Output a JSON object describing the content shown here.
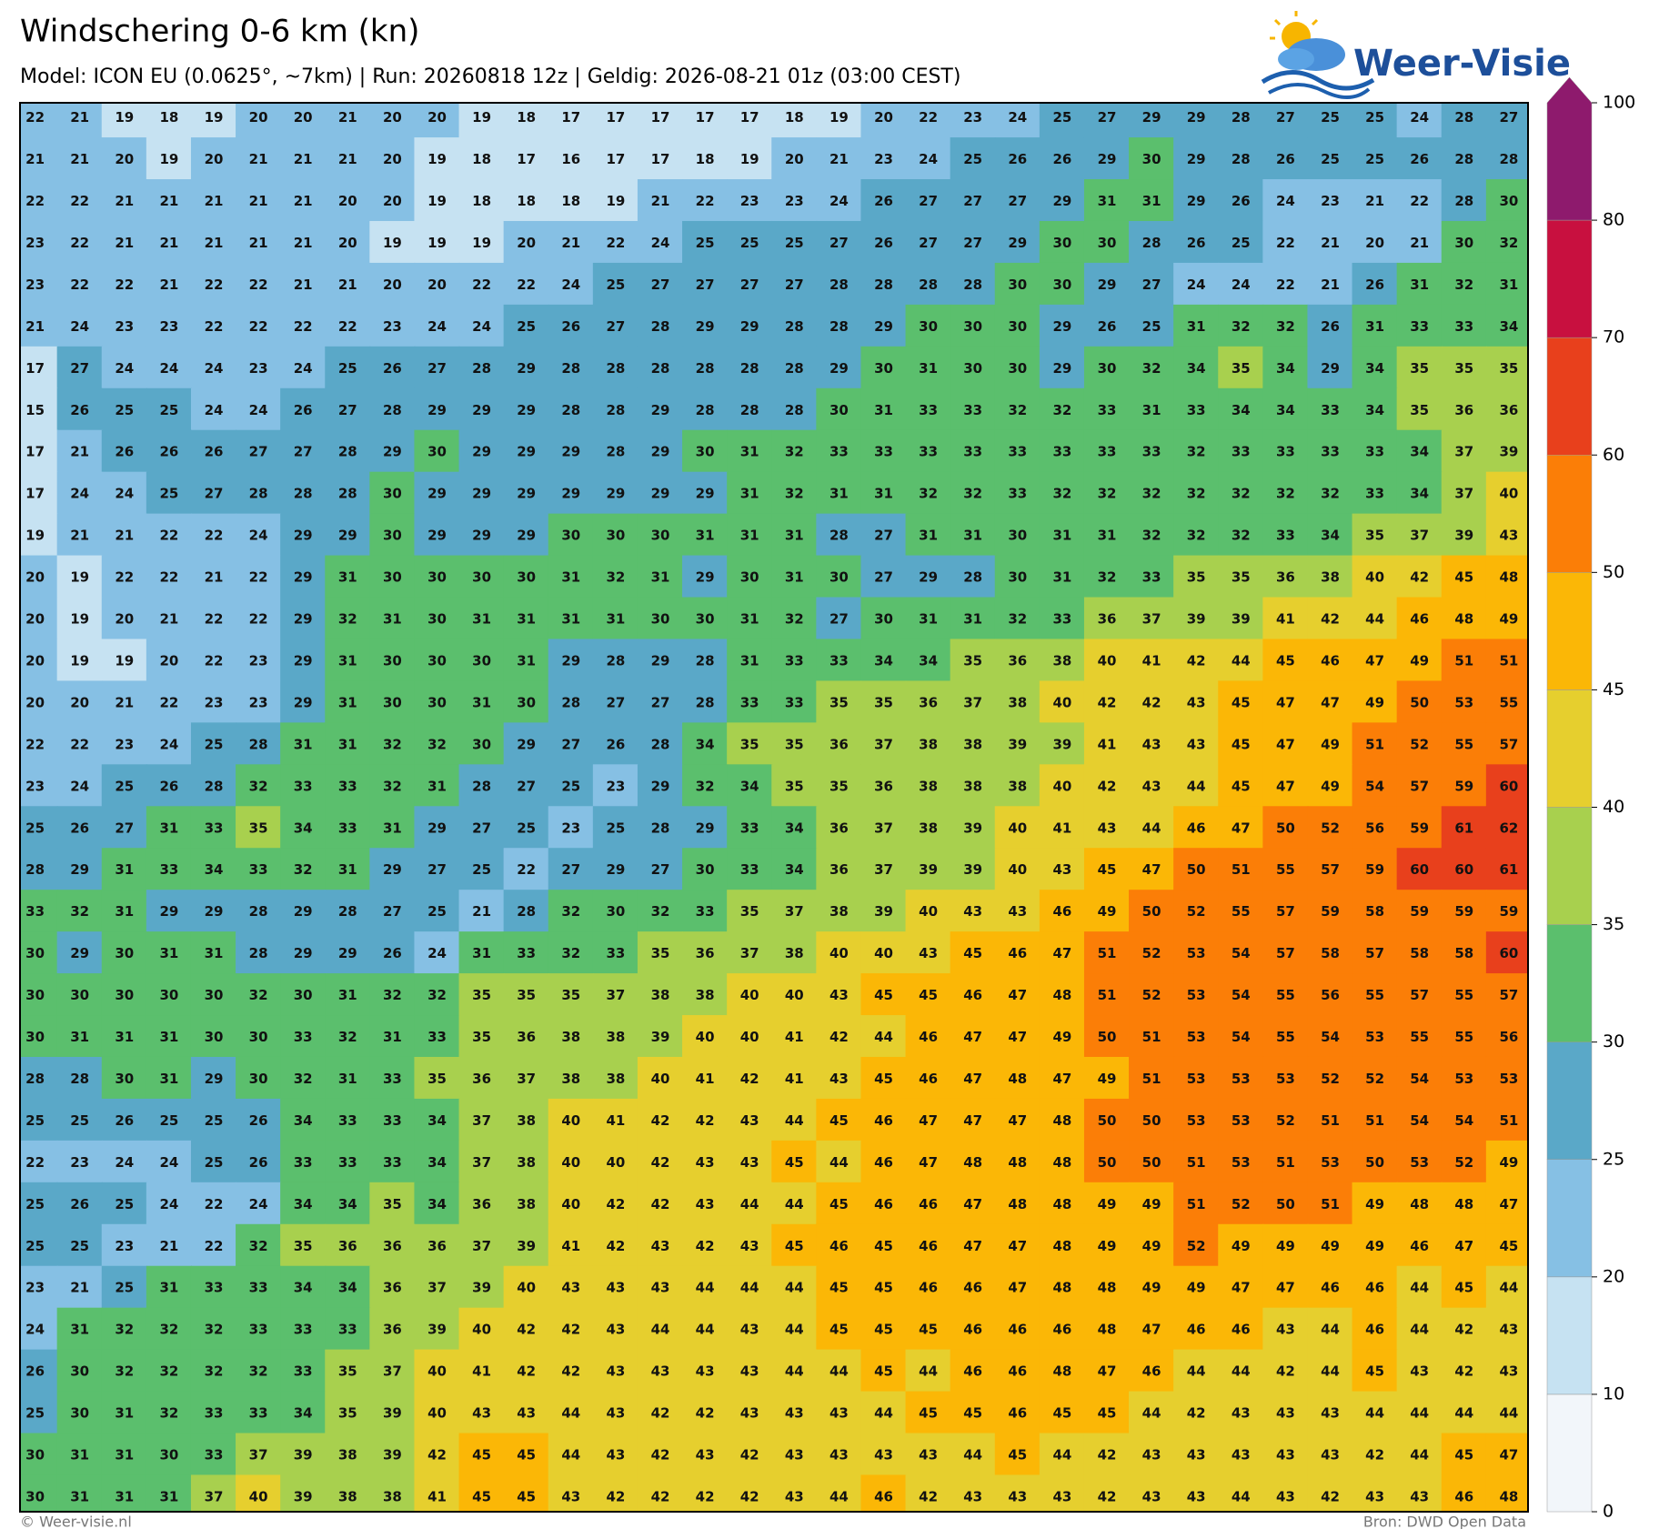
{
  "header": {
    "title": "Windschering 0-6 km (kn)",
    "subtitle": "Model: ICON EU (0.0625°, ~7km)  |  Run: 20260818 12z  |  Geldig: 2026-08-21 01z (03:00 CEST)"
  },
  "logo": {
    "text": "Weer-Visie"
  },
  "map_grid": {
    "values": [
      [
        22,
        21,
        19,
        18,
        19,
        20,
        20,
        21,
        20,
        20,
        19,
        18,
        17,
        17,
        17,
        17,
        17,
        18,
        19,
        20,
        22,
        23,
        24,
        25,
        27,
        29,
        29,
        28,
        27,
        25,
        25,
        24,
        28,
        27
      ],
      [
        21,
        21,
        20,
        19,
        20,
        21,
        21,
        21,
        20,
        19,
        18,
        17,
        16,
        17,
        17,
        18,
        19,
        20,
        21,
        23,
        24,
        25,
        26,
        26,
        29,
        30,
        29,
        28,
        26,
        25,
        25,
        26,
        28,
        28
      ],
      [
        22,
        22,
        21,
        21,
        21,
        21,
        21,
        20,
        20,
        19,
        18,
        18,
        18,
        19,
        21,
        22,
        23,
        23,
        24,
        26,
        27,
        27,
        27,
        29,
        31,
        31,
        29,
        26,
        24,
        23,
        21,
        22,
        28,
        30
      ],
      [
        23,
        22,
        21,
        21,
        21,
        21,
        21,
        20,
        19,
        19,
        19,
        20,
        21,
        22,
        24,
        25,
        25,
        25,
        27,
        26,
        27,
        27,
        29,
        30,
        30,
        28,
        26,
        25,
        22,
        21,
        20,
        21,
        30,
        32
      ],
      [
        23,
        22,
        22,
        21,
        22,
        22,
        21,
        21,
        20,
        20,
        22,
        22,
        24,
        25,
        27,
        27,
        27,
        27,
        28,
        28,
        28,
        28,
        30,
        30,
        29,
        27,
        24,
        24,
        22,
        21,
        26,
        31,
        32,
        31
      ],
      [
        21,
        24,
        23,
        23,
        22,
        22,
        22,
        22,
        23,
        24,
        24,
        25,
        26,
        27,
        28,
        29,
        29,
        28,
        28,
        29,
        30,
        30,
        30,
        29,
        26,
        25,
        31,
        32,
        32,
        26,
        31,
        33,
        33,
        34
      ],
      [
        17,
        27,
        24,
        24,
        24,
        23,
        24,
        25,
        26,
        27,
        28,
        29,
        28,
        28,
        28,
        28,
        28,
        28,
        29,
        30,
        31,
        30,
        30,
        29,
        30,
        32,
        34,
        35,
        34,
        29,
        34,
        35,
        35,
        35
      ],
      [
        15,
        26,
        25,
        25,
        24,
        24,
        26,
        27,
        28,
        29,
        29,
        29,
        28,
        28,
        29,
        28,
        28,
        28,
        30,
        31,
        33,
        33,
        32,
        32,
        33,
        31,
        33,
        34,
        34,
        33,
        34,
        35,
        36,
        36
      ],
      [
        17,
        21,
        26,
        26,
        26,
        27,
        27,
        28,
        29,
        30,
        29,
        29,
        29,
        28,
        29,
        30,
        31,
        32,
        33,
        33,
        33,
        33,
        33,
        33,
        33,
        33,
        32,
        33,
        33,
        33,
        33,
        34,
        37,
        39
      ],
      [
        17,
        24,
        24,
        25,
        27,
        28,
        28,
        28,
        30,
        29,
        29,
        29,
        29,
        29,
        29,
        29,
        31,
        32,
        31,
        31,
        32,
        32,
        33,
        32,
        32,
        32,
        32,
        32,
        32,
        32,
        33,
        34,
        37,
        40
      ],
      [
        19,
        21,
        21,
        22,
        22,
        24,
        29,
        29,
        30,
        29,
        29,
        29,
        30,
        30,
        30,
        31,
        31,
        31,
        28,
        27,
        31,
        31,
        30,
        31,
        31,
        32,
        32,
        32,
        33,
        34,
        35,
        37,
        39,
        43
      ],
      [
        20,
        19,
        22,
        22,
        21,
        22,
        29,
        31,
        30,
        30,
        30,
        30,
        31,
        32,
        31,
        29,
        30,
        31,
        30,
        27,
        29,
        28,
        30,
        31,
        32,
        33,
        35,
        35,
        36,
        38,
        40,
        42,
        45,
        48
      ],
      [
        20,
        19,
        20,
        21,
        22,
        22,
        29,
        32,
        31,
        30,
        31,
        31,
        31,
        31,
        30,
        30,
        31,
        32,
        27,
        30,
        31,
        31,
        32,
        33,
        36,
        37,
        39,
        39,
        41,
        42,
        44,
        46,
        48,
        49
      ],
      [
        20,
        19,
        19,
        20,
        22,
        23,
        29,
        31,
        30,
        30,
        30,
        31,
        29,
        28,
        29,
        28,
        31,
        33,
        33,
        34,
        34,
        35,
        36,
        38,
        40,
        41,
        42,
        44,
        45,
        46,
        47,
        49,
        51,
        51
      ],
      [
        20,
        20,
        21,
        22,
        23,
        23,
        29,
        31,
        30,
        30,
        31,
        30,
        28,
        27,
        27,
        28,
        33,
        33,
        35,
        35,
        36,
        37,
        38,
        40,
        42,
        42,
        43,
        45,
        47,
        47,
        49,
        50,
        53,
        55
      ],
      [
        22,
        22,
        23,
        24,
        25,
        28,
        31,
        31,
        32,
        32,
        30,
        29,
        27,
        26,
        28,
        34,
        35,
        35,
        36,
        37,
        38,
        38,
        39,
        39,
        41,
        43,
        43,
        45,
        47,
        49,
        51,
        52,
        55,
        57
      ],
      [
        23,
        24,
        25,
        26,
        28,
        32,
        33,
        33,
        32,
        31,
        28,
        27,
        25,
        23,
        29,
        32,
        34,
        35,
        35,
        36,
        38,
        38,
        38,
        40,
        42,
        43,
        44,
        45,
        47,
        49,
        54,
        57,
        59,
        60
      ],
      [
        25,
        26,
        27,
        31,
        33,
        35,
        34,
        33,
        31,
        29,
        27,
        25,
        23,
        25,
        28,
        29,
        33,
        34,
        36,
        37,
        38,
        39,
        40,
        41,
        43,
        44,
        46,
        47,
        50,
        52,
        56,
        59,
        61,
        62
      ],
      [
        28,
        29,
        31,
        33,
        34,
        33,
        32,
        31,
        29,
        27,
        25,
        22,
        27,
        29,
        27,
        30,
        33,
        34,
        36,
        37,
        39,
        39,
        40,
        43,
        45,
        47,
        50,
        51,
        55,
        57,
        59,
        60,
        60,
        61
      ],
      [
        33,
        32,
        31,
        29,
        29,
        28,
        29,
        28,
        27,
        25,
        21,
        28,
        32,
        30,
        32,
        33,
        35,
        37,
        38,
        39,
        40,
        43,
        43,
        46,
        49,
        50,
        52,
        55,
        57,
        59,
        58,
        59,
        59,
        59
      ],
      [
        30,
        29,
        30,
        31,
        31,
        28,
        29,
        29,
        26,
        24,
        31,
        33,
        32,
        33,
        35,
        36,
        37,
        38,
        40,
        40,
        43,
        45,
        46,
        47,
        51,
        52,
        53,
        54,
        57,
        58,
        57,
        58,
        58,
        60
      ],
      [
        30,
        30,
        30,
        30,
        30,
        32,
        30,
        31,
        32,
        32,
        35,
        35,
        35,
        37,
        38,
        38,
        40,
        40,
        43,
        45,
        45,
        46,
        47,
        48,
        51,
        52,
        53,
        54,
        55,
        56,
        55,
        57,
        55,
        57
      ],
      [
        30,
        31,
        31,
        31,
        30,
        30,
        33,
        32,
        31,
        33,
        35,
        36,
        38,
        38,
        39,
        40,
        40,
        41,
        42,
        44,
        46,
        47,
        47,
        49,
        50,
        51,
        53,
        54,
        55,
        54,
        53,
        55,
        55,
        56
      ],
      [
        28,
        28,
        30,
        31,
        29,
        30,
        32,
        31,
        33,
        35,
        36,
        37,
        38,
        38,
        40,
        41,
        42,
        41,
        43,
        45,
        46,
        47,
        48,
        47,
        49,
        51,
        53,
        53,
        53,
        52,
        52,
        54,
        53,
        53
      ],
      [
        25,
        25,
        26,
        25,
        25,
        26,
        34,
        33,
        33,
        34,
        37,
        38,
        40,
        41,
        42,
        42,
        43,
        44,
        45,
        46,
        47,
        47,
        47,
        48,
        50,
        50,
        53,
        53,
        52,
        51,
        51,
        54,
        54,
        51
      ],
      [
        22,
        23,
        24,
        24,
        25,
        26,
        33,
        33,
        33,
        34,
        37,
        38,
        40,
        40,
        42,
        43,
        43,
        45,
        44,
        46,
        47,
        48,
        48,
        48,
        50,
        50,
        51,
        53,
        51,
        53,
        50,
        53,
        52,
        49
      ],
      [
        25,
        26,
        25,
        24,
        22,
        24,
        34,
        34,
        35,
        34,
        36,
        38,
        40,
        42,
        42,
        43,
        44,
        44,
        45,
        46,
        46,
        47,
        48,
        48,
        49,
        49,
        51,
        52,
        50,
        51,
        49,
        48,
        48,
        47
      ],
      [
        25,
        25,
        23,
        21,
        22,
        32,
        35,
        36,
        36,
        36,
        37,
        39,
        41,
        42,
        43,
        42,
        43,
        45,
        46,
        45,
        46,
        47,
        47,
        48,
        49,
        49,
        52,
        49,
        49,
        49,
        49,
        46,
        47,
        45
      ],
      [
        23,
        21,
        25,
        31,
        33,
        33,
        34,
        34,
        36,
        37,
        39,
        40,
        43,
        43,
        43,
        44,
        44,
        44,
        45,
        45,
        46,
        46,
        47,
        48,
        48,
        49,
        49,
        47,
        47,
        46,
        46,
        44,
        45,
        44
      ],
      [
        24,
        31,
        32,
        32,
        32,
        33,
        33,
        33,
        36,
        39,
        40,
        42,
        42,
        43,
        44,
        44,
        43,
        44,
        45,
        45,
        45,
        46,
        46,
        46,
        48,
        47,
        46,
        46,
        43,
        44,
        46,
        44,
        42,
        43
      ],
      [
        26,
        30,
        32,
        32,
        32,
        32,
        33,
        35,
        37,
        40,
        41,
        42,
        42,
        43,
        43,
        43,
        43,
        44,
        44,
        45,
        44,
        46,
        46,
        48,
        47,
        46,
        44,
        44,
        42,
        44,
        45,
        43,
        42,
        43
      ],
      [
        25,
        30,
        31,
        32,
        33,
        33,
        34,
        35,
        39,
        40,
        43,
        43,
        44,
        43,
        42,
        42,
        43,
        43,
        43,
        44,
        45,
        45,
        46,
        45,
        45,
        44,
        42,
        43,
        43,
        43,
        44,
        44,
        44,
        44
      ],
      [
        30,
        31,
        31,
        30,
        33,
        37,
        39,
        38,
        39,
        42,
        45,
        45,
        44,
        43,
        42,
        43,
        42,
        43,
        43,
        43,
        43,
        44,
        45,
        44,
        42,
        43,
        43,
        43,
        43,
        43,
        42,
        44,
        45,
        47
      ],
      [
        30,
        31,
        31,
        31,
        37,
        40,
        39,
        38,
        38,
        41,
        45,
        45,
        43,
        42,
        42,
        42,
        42,
        43,
        44,
        46,
        42,
        43,
        43,
        43,
        42,
        43,
        43,
        44,
        43,
        42,
        43,
        43,
        46,
        48
      ]
    ]
  },
  "colorbar": {
    "ticks": [
      0,
      10,
      20,
      25,
      30,
      35,
      40,
      45,
      50,
      60,
      70,
      80,
      100
    ],
    "colors": [
      "#f2f6fa",
      "#c6e2f2",
      "#86c0e4",
      "#5aa8c8",
      "#5bbf6d",
      "#a8d04e",
      "#e6cf2e",
      "#fbb706",
      "#fb7e07",
      "#e8401c",
      "#c8103f",
      "#8e1a6d"
    ]
  },
  "footer": {
    "left": "© Weer-visie.nl",
    "right": "Bron: DWD Open Data"
  }
}
